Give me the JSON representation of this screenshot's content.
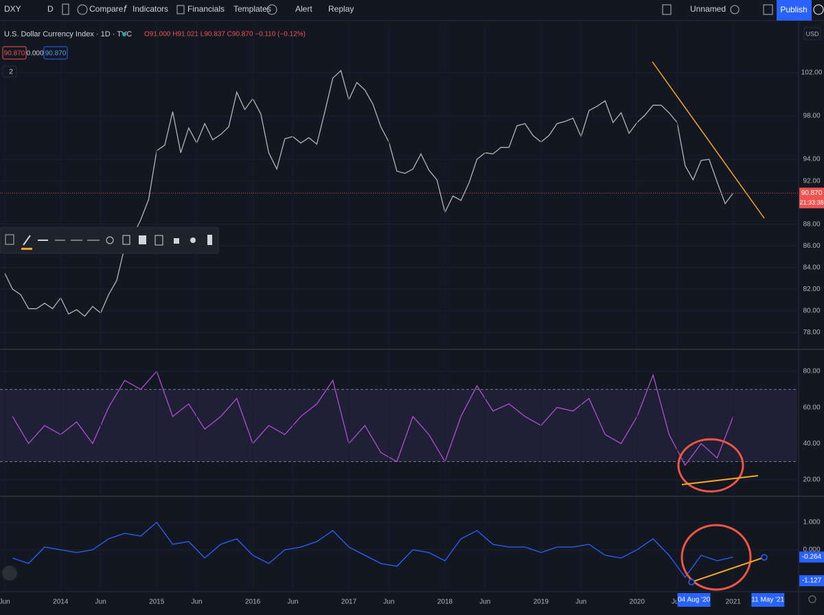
{
  "toolbar": {
    "symbol": "DXY",
    "interval": "D",
    "compare": "Compare",
    "indicators": "Indicators",
    "financials": "Financials",
    "templates": "Templates",
    "alert": "Alert",
    "replay": "Replay",
    "layout_name": "Unnamed",
    "publish": "Publish"
  },
  "legend": {
    "ohlc": "O91.000 H91.021 L90.837 C90.870 −0.110 (−0.12%)",
    "chips": [
      "90.870",
      "0.000",
      "90.870"
    ],
    "collapse": "2",
    "currency": "USD"
  },
  "chart_data": [
    {
      "type": "line",
      "title": "U.S. Dollar Currency Index · 1D · TVC",
      "color": "#b2b5be",
      "grid": true,
      "x": [
        "2013-06",
        "2013-07",
        "2013-08",
        "2013-09",
        "2013-10",
        "2013-11",
        "2013-12",
        "2014-01",
        "2014-02",
        "2014-03",
        "2014-04",
        "2014-05",
        "2014-06",
        "2014-07",
        "2014-08",
        "2014-09",
        "2014-10",
        "2014-11",
        "2014-12",
        "2015-01",
        "2015-02",
        "2015-03",
        "2015-04",
        "2015-05",
        "2015-06",
        "2015-07",
        "2015-08",
        "2015-09",
        "2015-10",
        "2015-11",
        "2015-12",
        "2016-01",
        "2016-02",
        "2016-03",
        "2016-04",
        "2016-05",
        "2016-06",
        "2016-07",
        "2016-08",
        "2016-09",
        "2016-10",
        "2016-11",
        "2016-12",
        "2017-01",
        "2017-02",
        "2017-03",
        "2017-04",
        "2017-05",
        "2017-06",
        "2017-07",
        "2017-08",
        "2017-09",
        "2017-10",
        "2017-11",
        "2017-12",
        "2018-01",
        "2018-02",
        "2018-03",
        "2018-04",
        "2018-05",
        "2018-06",
        "2018-07",
        "2018-08",
        "2018-09",
        "2018-10",
        "2018-11",
        "2018-12",
        "2019-01",
        "2019-02",
        "2019-03",
        "2019-04",
        "2019-05",
        "2019-06",
        "2019-07",
        "2019-08",
        "2019-09",
        "2019-10",
        "2019-11",
        "2019-12",
        "2020-01",
        "2020-02",
        "2020-03",
        "2020-04",
        "2020-05",
        "2020-06",
        "2020-07",
        "2020-08",
        "2020-09",
        "2020-10",
        "2020-11",
        "2020-12",
        "2021-01"
      ],
      "values": [
        83.5,
        82.0,
        81.5,
        80.2,
        80.2,
        80.7,
        80.2,
        81.2,
        79.7,
        80.1,
        79.5,
        80.4,
        79.8,
        81.5,
        82.8,
        85.9,
        86.9,
        88.4,
        90.3,
        94.8,
        95.3,
        98.4,
        94.6,
        96.9,
        95.5,
        97.3,
        95.8,
        96.3,
        97.0,
        100.2,
        98.6,
        99.6,
        98.2,
        94.6,
        93.1,
        95.9,
        96.1,
        95.5,
        96.0,
        95.4,
        98.4,
        101.5,
        102.2,
        99.5,
        101.1,
        100.4,
        99.1,
        97.0,
        95.6,
        92.9,
        92.7,
        93.1,
        94.5,
        93.0,
        92.1,
        89.1,
        90.6,
        90.2,
        91.8,
        94.0,
        94.6,
        94.5,
        95.1,
        95.1,
        97.1,
        97.3,
        96.2,
        95.6,
        96.2,
        97.3,
        97.5,
        97.8,
        96.1,
        98.5,
        98.9,
        99.4,
        97.4,
        98.3,
        96.4,
        97.4,
        98.1,
        99.0,
        99.0,
        98.3,
        97.4,
        93.4,
        92.1,
        93.9,
        94.0,
        91.9,
        89.9,
        90.87
      ],
      "xlim": [
        "2013-05",
        "2021-09"
      ],
      "ylim": [
        76.5,
        106.5
      ],
      "yticks": [
        {
          "value": 78,
          "label": "78.00"
        },
        {
          "value": 80,
          "label": "80.00"
        },
        {
          "value": 82,
          "label": "82.00"
        },
        {
          "value": 84,
          "label": "84.00"
        },
        {
          "value": 86,
          "label": "86.00"
        },
        {
          "value": 88,
          "label": "88.00"
        },
        {
          "value": 92,
          "label": "92.00"
        },
        {
          "value": 94,
          "label": "94.00"
        },
        {
          "value": 98,
          "label": "98.00"
        },
        {
          "value": 102,
          "label": "102.00"
        }
      ],
      "last_price": {
        "value": 90.87,
        "label": "90.870"
      },
      "countdown": "21:33:38"
    },
    {
      "type": "line",
      "color": "#b04fd4",
      "grid": true,
      "x": [
        "2013-07",
        "2013-09",
        "2013-11",
        "2014-01",
        "2014-03",
        "2014-05",
        "2014-07",
        "2014-09",
        "2014-11",
        "2015-01",
        "2015-03",
        "2015-05",
        "2015-07",
        "2015-09",
        "2015-11",
        "2016-01",
        "2016-03",
        "2016-05",
        "2016-07",
        "2016-09",
        "2016-11",
        "2017-01",
        "2017-03",
        "2017-05",
        "2017-07",
        "2017-09",
        "2017-11",
        "2018-01",
        "2018-03",
        "2018-05",
        "2018-07",
        "2018-09",
        "2018-11",
        "2019-01",
        "2019-03",
        "2019-05",
        "2019-07",
        "2019-09",
        "2019-11",
        "2020-01",
        "2020-03",
        "2020-05",
        "2020-07",
        "2020-09",
        "2020-11",
        "2021-01"
      ],
      "values": [
        55,
        40,
        50,
        45,
        52,
        40,
        60,
        75,
        70,
        80,
        55,
        62,
        48,
        55,
        65,
        40,
        50,
        45,
        55,
        62,
        75,
        40,
        50,
        35,
        30,
        55,
        45,
        30,
        55,
        72,
        58,
        62,
        55,
        50,
        60,
        58,
        65,
        45,
        40,
        55,
        78,
        45,
        28,
        40,
        32,
        55
      ],
      "xlim": [
        "2013-05",
        "2021-09"
      ],
      "ylim": [
        11.2,
        91.8
      ],
      "yticks": [
        {
          "value": 20,
          "label": "20.00"
        },
        {
          "value": 40,
          "label": "40.00"
        },
        {
          "value": 60,
          "label": "60.00"
        },
        {
          "value": 80,
          "label": "80.00"
        }
      ],
      "bands": [
        30,
        70
      ]
    },
    {
      "type": "line",
      "color": "#2962ff",
      "grid": true,
      "x": [
        "2013-07",
        "2013-09",
        "2013-11",
        "2014-01",
        "2014-03",
        "2014-05",
        "2014-07",
        "2014-09",
        "2014-11",
        "2015-01",
        "2015-03",
        "2015-05",
        "2015-07",
        "2015-09",
        "2015-11",
        "2016-01",
        "2016-03",
        "2016-05",
        "2016-07",
        "2016-09",
        "2016-11",
        "2017-01",
        "2017-03",
        "2017-05",
        "2017-07",
        "2017-09",
        "2017-11",
        "2018-01",
        "2018-03",
        "2018-05",
        "2018-07",
        "2018-09",
        "2018-11",
        "2019-01",
        "2019-03",
        "2019-05",
        "2019-07",
        "2019-09",
        "2019-11",
        "2020-01",
        "2020-03",
        "2020-05",
        "2020-07",
        "2020-09",
        "2020-11",
        "2021-01"
      ],
      "values": [
        -0.3,
        -0.5,
        0.1,
        0.0,
        -0.1,
        0.0,
        0.4,
        0.6,
        0.5,
        1.0,
        0.2,
        0.3,
        -0.3,
        0.2,
        0.4,
        -0.2,
        -0.5,
        0.0,
        0.1,
        0.3,
        0.7,
        0.1,
        -0.2,
        -0.5,
        -0.6,
        0.0,
        -0.1,
        -0.4,
        0.4,
        0.7,
        0.2,
        0.1,
        0.1,
        -0.1,
        0.1,
        0.1,
        0.2,
        -0.2,
        -0.3,
        0.0,
        0.4,
        -0.2,
        -1.0,
        -0.2,
        -0.4,
        -0.264
      ],
      "xlim": [
        "2013-05",
        "2021-09"
      ],
      "ylim": [
        -1.525,
        1.925
      ],
      "yticks": [
        {
          "value": 0,
          "label": "0.000"
        },
        {
          "value": 1,
          "label": "1.000"
        }
      ],
      "price_labels": [
        -0.264,
        -1.127
      ],
      "xticks": [
        {
          "value": "2013-06",
          "label": "Jun"
        },
        {
          "value": "2014-01",
          "label": "2014"
        },
        {
          "value": "2014-06",
          "label": "Jun"
        },
        {
          "value": "2015-01",
          "label": "2015"
        },
        {
          "value": "2015-06",
          "label": "Jun"
        },
        {
          "value": "2016-01",
          "label": "2016"
        },
        {
          "value": "2016-06",
          "label": "Jun"
        },
        {
          "value": "2017-01",
          "label": "2017"
        },
        {
          "value": "2017-06",
          "label": "Jun"
        },
        {
          "value": "2018-01",
          "label": "2018"
        },
        {
          "value": "2018-06",
          "label": "Jun"
        },
        {
          "value": "2019-01",
          "label": "2019"
        },
        {
          "value": "2019-06",
          "label": "Jun"
        },
        {
          "value": "2020-01",
          "label": "2020"
        },
        {
          "value": "2020-06",
          "label": "Jun"
        },
        {
          "value": "2021-01",
          "label": "2021"
        }
      ],
      "annotations": [
        {
          "x": "2020-08-04",
          "label": "04 Aug '20"
        },
        {
          "x": "2021-05-11",
          "label": "11 May '21"
        }
      ]
    }
  ]
}
